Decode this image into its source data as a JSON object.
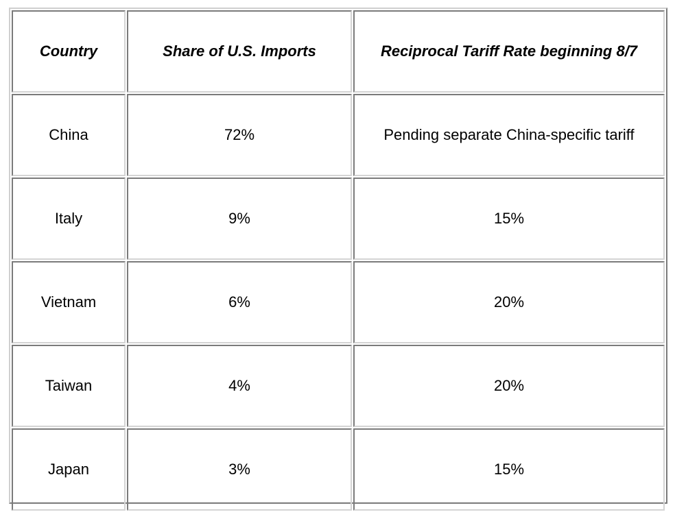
{
  "table": {
    "headers": [
      "Country",
      "Share of U.S. Imports",
      "Reciprocal Tariff Rate beginning 8/7"
    ],
    "rows": [
      [
        "China",
        "72%",
        "Pending separate China-specific tariff"
      ],
      [
        "Italy",
        "9%",
        "15%"
      ],
      [
        "Vietnam",
        "6%",
        "20%"
      ],
      [
        "Taiwan",
        "4%",
        "20%"
      ],
      [
        "Japan",
        "3%",
        "15%"
      ]
    ]
  }
}
